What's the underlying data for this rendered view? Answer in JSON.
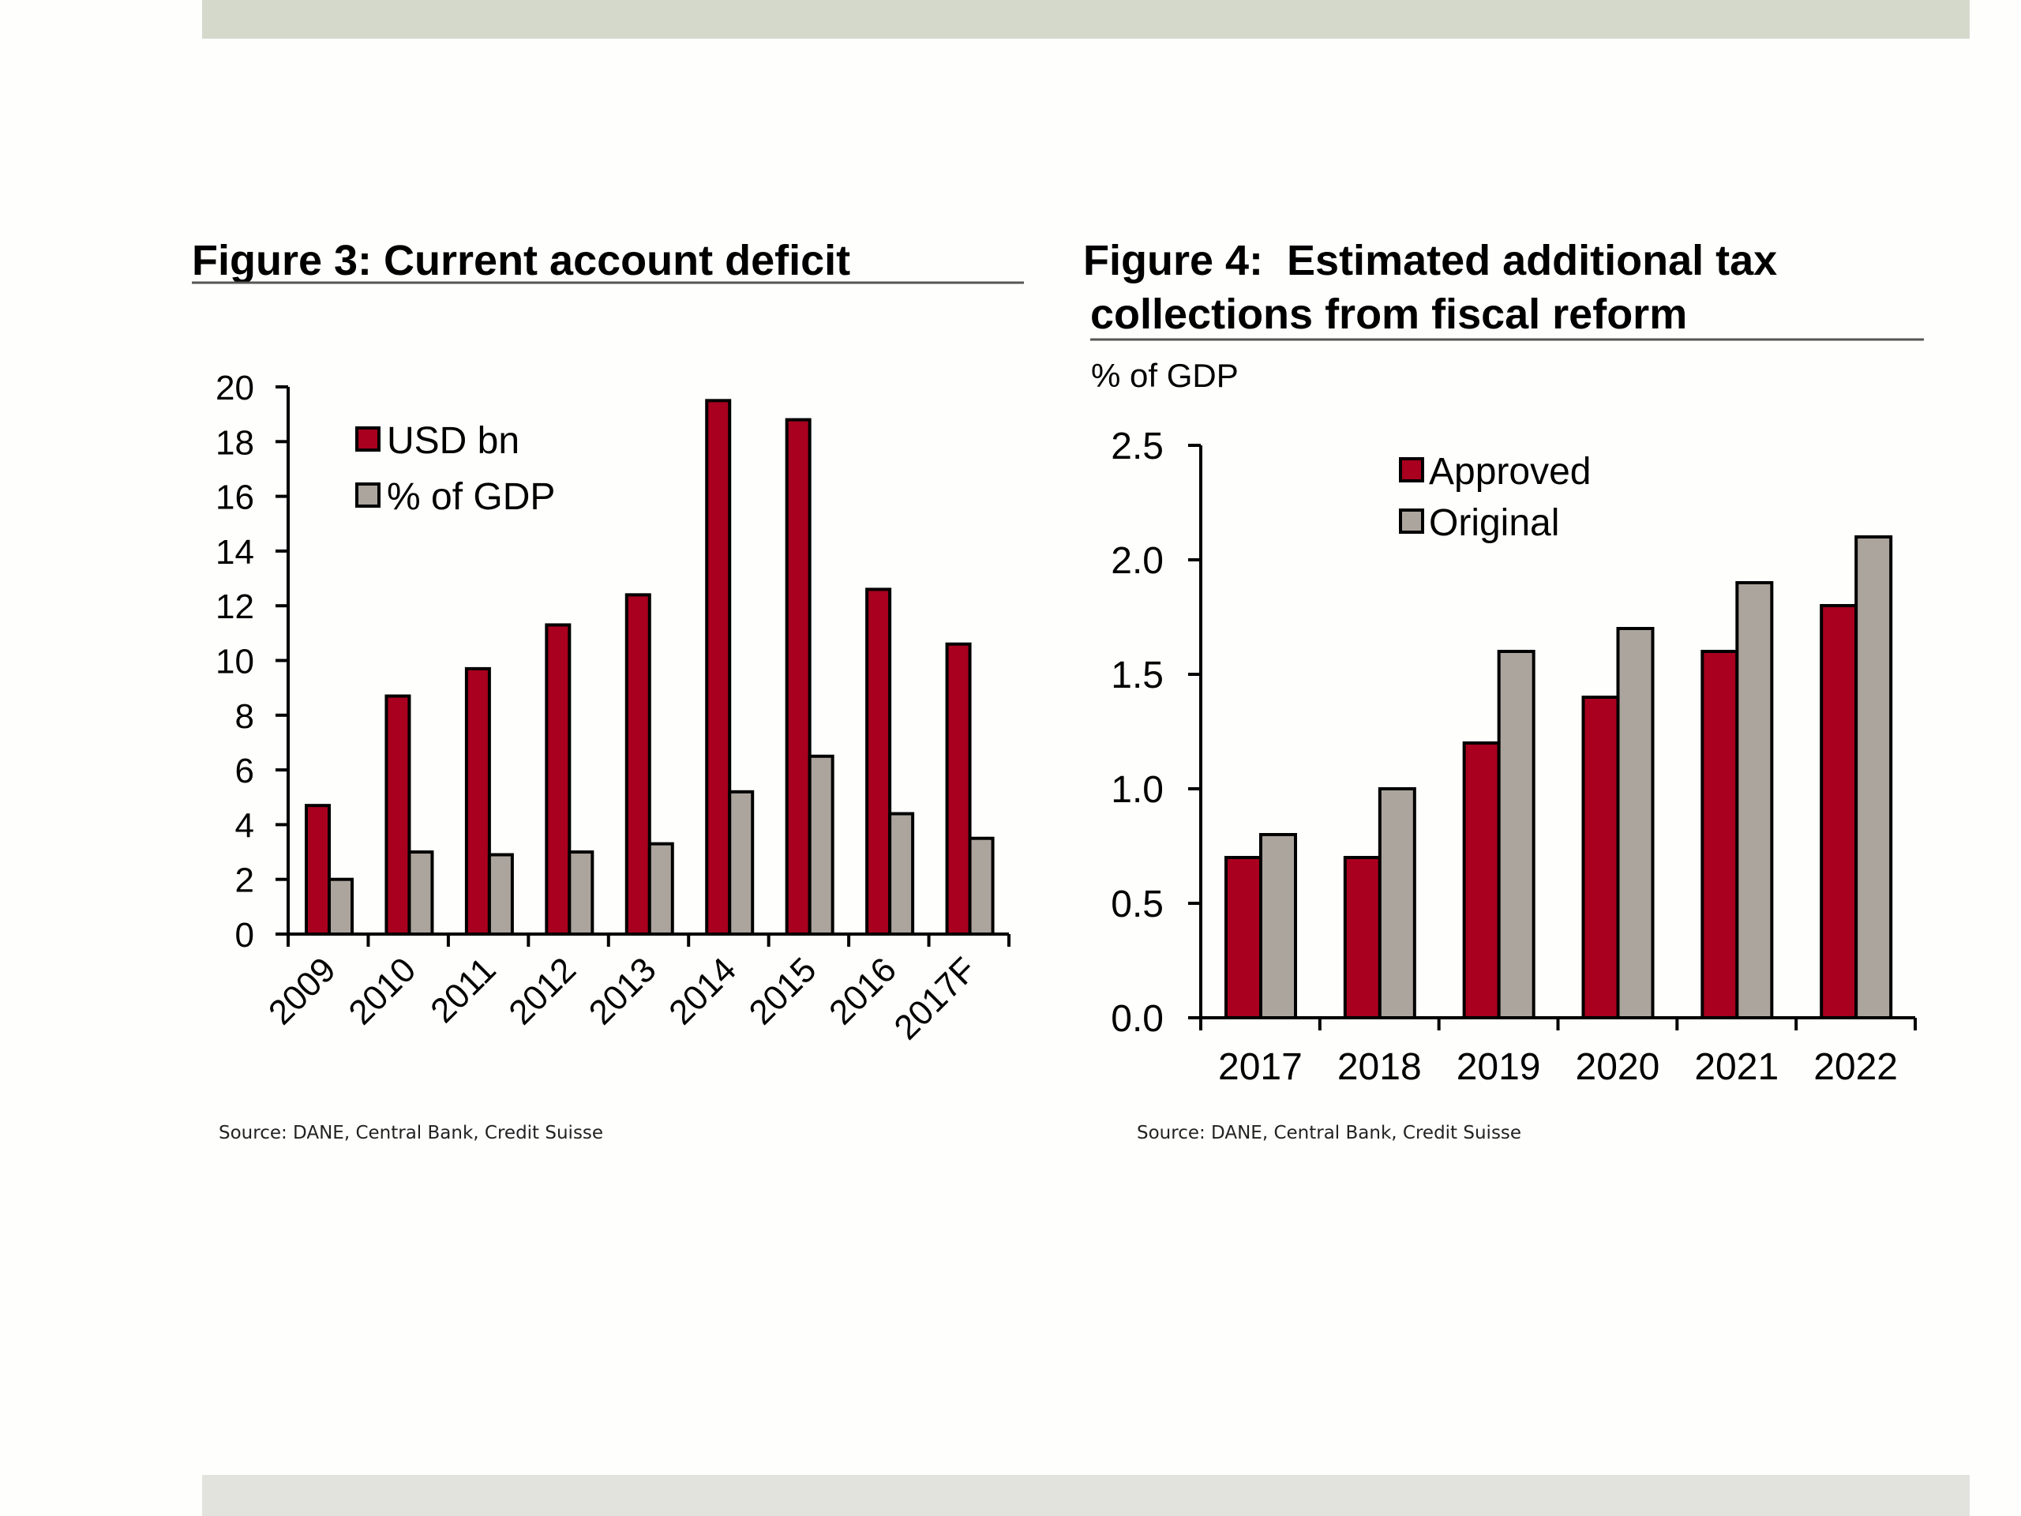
{
  "colors": {
    "series_primary": "#a8001e",
    "series_secondary": "#aca59d",
    "band_top": "#d5d9cc",
    "band_bottom": "#e1e3dc"
  },
  "chart_data": [
    {
      "type": "bar",
      "title": "Figure 3: Current account deficit",
      "xlabel": "",
      "ylabel": "",
      "categories": [
        "2009",
        "2010",
        "2011",
        "2012",
        "2013",
        "2014",
        "2015",
        "2016",
        "2017F"
      ],
      "series": [
        {
          "name": "USD bn",
          "values": [
            4.7,
            8.7,
            9.7,
            11.3,
            12.4,
            19.5,
            18.8,
            12.6,
            10.6
          ]
        },
        {
          "name": "% of GDP",
          "values": [
            2.0,
            3.0,
            2.9,
            3.0,
            3.3,
            5.2,
            6.5,
            4.4,
            3.5
          ]
        }
      ],
      "ylim": [
        0,
        20
      ],
      "yticks": [
        "0",
        "2",
        "4",
        "6",
        "8",
        "10",
        "12",
        "14",
        "16",
        "18",
        "20"
      ],
      "ytick_values": [
        0,
        2,
        4,
        6,
        8,
        10,
        12,
        14,
        16,
        18,
        20
      ],
      "grid": false,
      "legend": "top-left",
      "x_label_rotation": "diagonal",
      "source": "Source: DANE, Central Bank, Credit Suisse"
    },
    {
      "type": "bar",
      "title_line1": "Figure 4:  Estimated additional tax",
      "title_line2": "collections from fiscal reform",
      "title": "Figure 4:  Estimated additional tax collections from fiscal reform",
      "xlabel": "",
      "ylabel": "% of GDP",
      "categories": [
        "2017",
        "2018",
        "2019",
        "2020",
        "2021",
        "2022"
      ],
      "series": [
        {
          "name": "Approved",
          "values": [
            0.7,
            0.7,
            1.2,
            1.4,
            1.6,
            1.8
          ]
        },
        {
          "name": "Original",
          "values": [
            0.8,
            1.0,
            1.6,
            1.7,
            1.9,
            2.1
          ]
        }
      ],
      "ylim": [
        0,
        2.5
      ],
      "yticks": [
        "0.0",
        "0.5",
        "1.0",
        "1.5",
        "2.0",
        "2.5"
      ],
      "ytick_values": [
        0,
        0.5,
        1.0,
        1.5,
        2.0,
        2.5
      ],
      "grid": false,
      "legend": "top-center",
      "source": "Source: DANE, Central Bank, Credit Suisse"
    }
  ]
}
